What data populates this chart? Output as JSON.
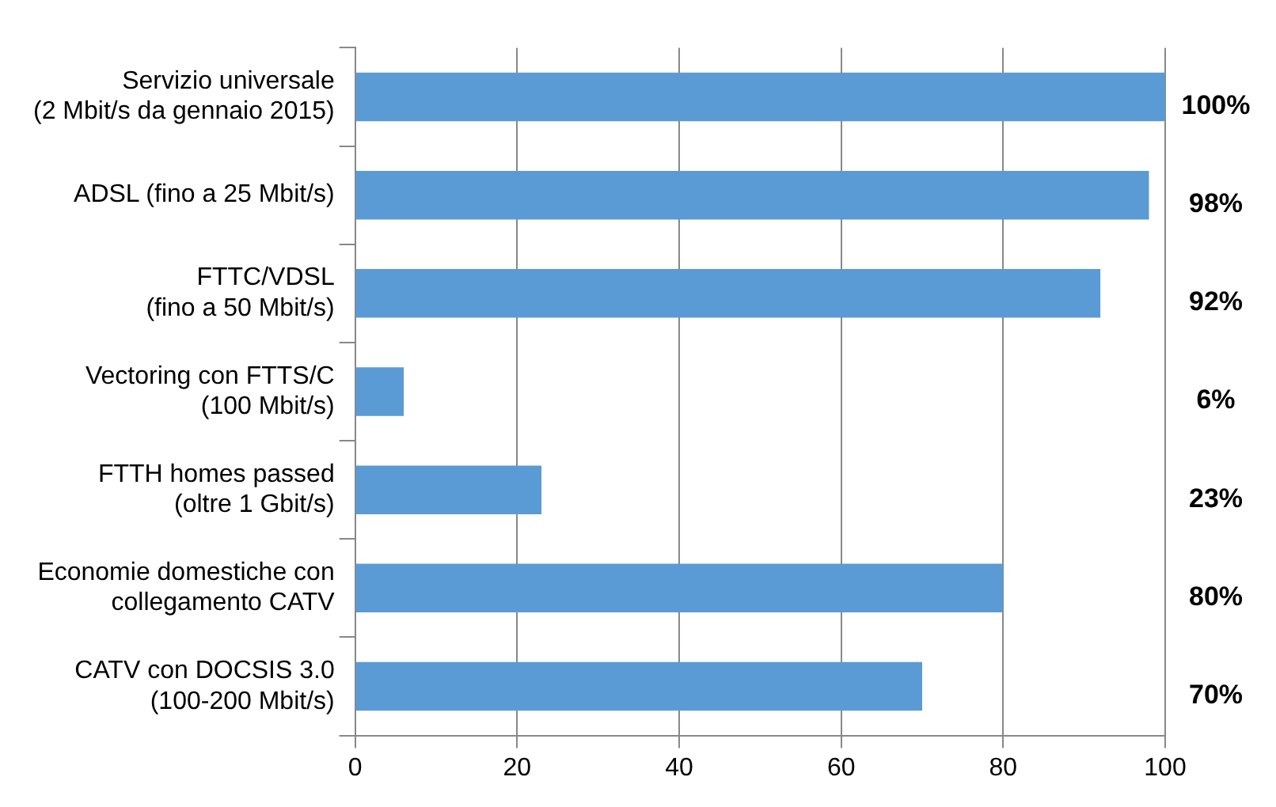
{
  "chart_data": {
    "type": "bar",
    "orientation": "horizontal",
    "categories": [
      "Servizio universale\n(2 Mbit/s da gennaio 2015)",
      "ADSL (fino a 25 Mbit/s)",
      "FTTC/VDSL\n(fino a 50 Mbit/s)",
      "Vectoring con FTTS/C\n(100 Mbit/s)",
      "FTTH homes passed\n(oltre 1 Gbit/s)",
      "Economie domestiche con\ncollegamento CATV",
      "CATV con DOCSIS 3.0\n(100-200 Mbit/s)"
    ],
    "values": [
      100,
      98,
      92,
      6,
      23,
      80,
      70
    ],
    "value_labels": [
      "100%",
      "98%",
      "92%",
      "6%",
      "23%",
      "80%",
      "70%"
    ],
    "color": "#5b9bd5",
    "xlim": [
      0,
      100
    ],
    "xticks": [
      0,
      20,
      40,
      60,
      80,
      100
    ],
    "grid": "x",
    "legend": false
  }
}
